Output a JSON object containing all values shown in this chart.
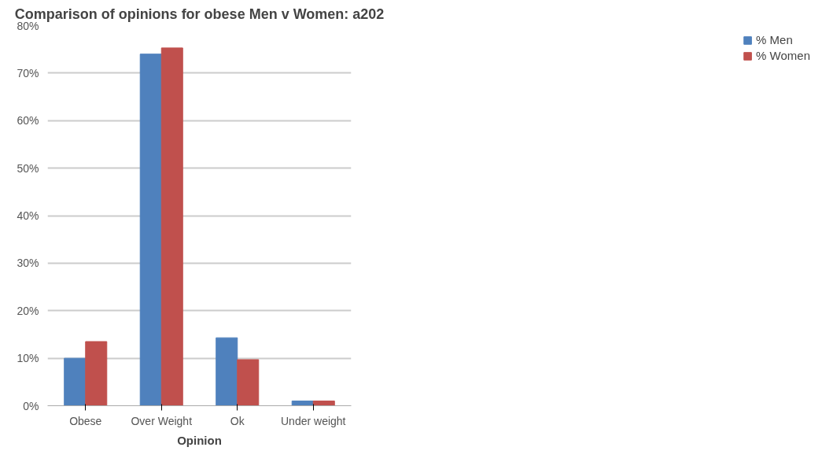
{
  "chart_data": {
    "type": "bar",
    "title": "Comparison of opinions for obese Men v Women: a202",
    "xlabel": "Opinion",
    "categories": [
      "Obese",
      "Over Weight",
      "Ok",
      "Under weight"
    ],
    "series": [
      {
        "name": "% Men",
        "color": "#4f81bd",
        "values": [
          10,
          74,
          14.3,
          1
        ]
      },
      {
        "name": "% Women",
        "color": "#c0504d",
        "values": [
          13.5,
          75.3,
          9.7,
          1
        ]
      }
    ],
    "ylim": [
      0,
      80
    ],
    "yticks": [
      {
        "value": 0,
        "label": "0%"
      },
      {
        "value": 10,
        "label": "10%"
      },
      {
        "value": 20,
        "label": "20%"
      },
      {
        "value": 30,
        "label": "30%"
      },
      {
        "value": 40,
        "label": "40%"
      },
      {
        "value": 50,
        "label": "50%"
      },
      {
        "value": 60,
        "label": "60%"
      },
      {
        "value": 70,
        "label": "70%"
      },
      {
        "value": 80,
        "label": "80%"
      }
    ],
    "grid": "y",
    "legend": "right"
  }
}
